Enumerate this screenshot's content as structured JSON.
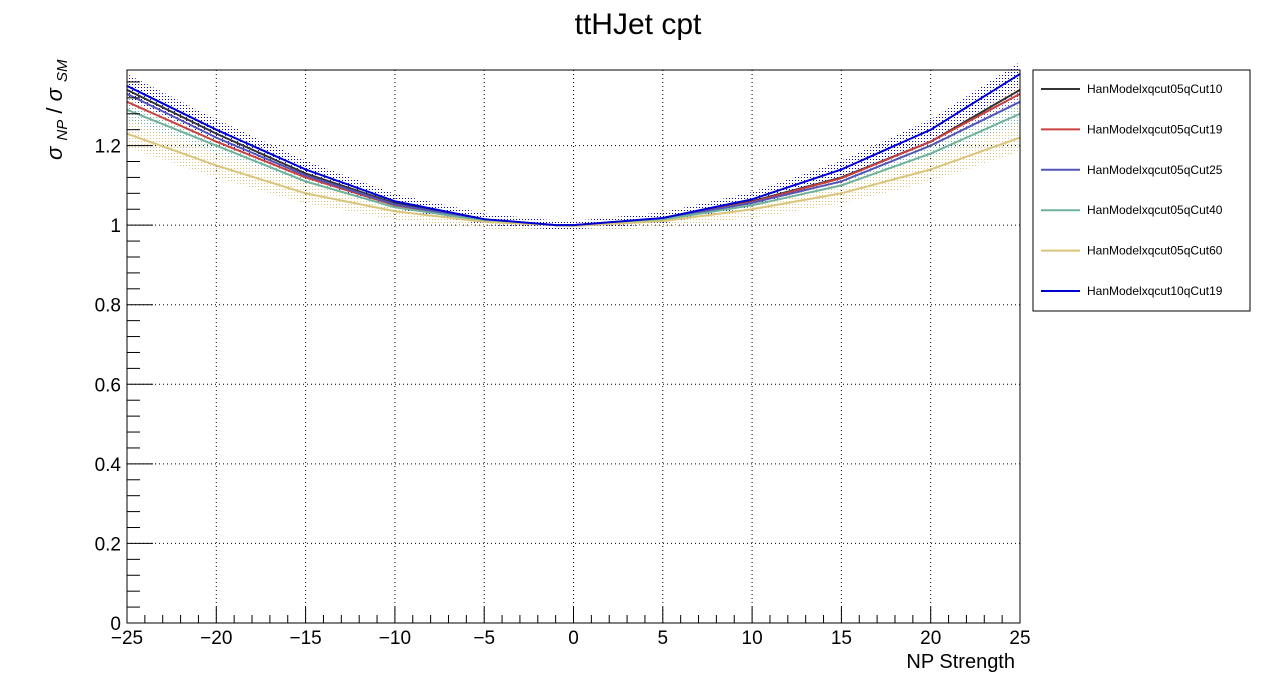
{
  "chart_data": {
    "type": "line",
    "title": "ttHJet cpt",
    "xlabel": "NP Strength",
    "ylabel": "σ_NP/σ_SM",
    "ylabel_parts": {
      "sym1": "σ",
      "sub1": "NP",
      "slash": "/",
      "sym2": "σ",
      "sub2": "SM"
    },
    "xlim": [
      -25,
      25
    ],
    "ylim": [
      0,
      1.39
    ],
    "x_ticks": [
      -25,
      -20,
      -15,
      -10,
      -5,
      0,
      5,
      10,
      15,
      20,
      25
    ],
    "x_tick_labels": [
      "−25",
      "−20",
      "−15",
      "−10",
      "−5",
      "0",
      "5",
      "10",
      "15",
      "20",
      "25"
    ],
    "y_ticks": [
      0,
      0.2,
      0.4,
      0.6,
      0.8,
      1,
      1.2
    ],
    "y_tick_labels": [
      "0",
      "0.2",
      "0.4",
      "0.6",
      "0.8",
      "1",
      "1.2"
    ],
    "grid": true,
    "legend_position": "right-top",
    "series": [
      {
        "name": "HanModelxqcut05qCut10",
        "color": "#333333",
        "x": [
          -25,
          -20,
          -15,
          -10,
          -5,
          -1,
          0,
          5,
          10,
          15,
          20,
          25
        ],
        "y": [
          1.34,
          1.23,
          1.13,
          1.055,
          1.014,
          1.0,
          1.0,
          1.017,
          1.06,
          1.12,
          1.21,
          1.34
        ],
        "band": 0.03
      },
      {
        "name": "HanModelxqcut05qCut19",
        "color": "#c8413f",
        "x": [
          -25,
          -20,
          -15,
          -10,
          -5,
          -1,
          0,
          5,
          10,
          15,
          20,
          25
        ],
        "y": [
          1.31,
          1.21,
          1.12,
          1.05,
          1.013,
          1.0,
          1.0,
          1.016,
          1.058,
          1.118,
          1.21,
          1.33
        ],
        "band": 0.03
      },
      {
        "name": "HanModelxqcut05qCut25",
        "color": "#5454b8",
        "x": [
          -25,
          -20,
          -15,
          -10,
          -5,
          -1,
          0,
          5,
          10,
          15,
          20,
          25
        ],
        "y": [
          1.33,
          1.22,
          1.125,
          1.052,
          1.013,
          1.0,
          1.0,
          1.016,
          1.056,
          1.11,
          1.2,
          1.31
        ],
        "band": 0.03
      },
      {
        "name": "HanModelxqcut05qCut40",
        "color": "#6fb19a",
        "x": [
          -25,
          -20,
          -15,
          -10,
          -5,
          -1,
          0,
          5,
          10,
          15,
          20,
          25
        ],
        "y": [
          1.29,
          1.2,
          1.11,
          1.045,
          1.011,
          1.0,
          1.0,
          1.014,
          1.05,
          1.1,
          1.18,
          1.28
        ],
        "band": 0.03
      },
      {
        "name": "HanModelxqcut05qCut60",
        "color": "#d9c47a",
        "x": [
          -25,
          -20,
          -15,
          -10,
          -5,
          -1,
          0,
          5,
          10,
          15,
          20,
          25
        ],
        "y": [
          1.23,
          1.15,
          1.08,
          1.035,
          1.008,
          1.0,
          0.998,
          1.01,
          1.04,
          1.08,
          1.14,
          1.22
        ],
        "band": 0.035
      },
      {
        "name": "HanModelxqcut10qCut19",
        "color": "#0000d0",
        "x": [
          -25,
          -20,
          -15,
          -10,
          -5,
          -1,
          0,
          5,
          10,
          15,
          20,
          25
        ],
        "y": [
          1.35,
          1.24,
          1.14,
          1.06,
          1.015,
          1.0,
          1.0,
          1.018,
          1.065,
          1.14,
          1.24,
          1.38
        ],
        "band": 0.03
      }
    ]
  }
}
